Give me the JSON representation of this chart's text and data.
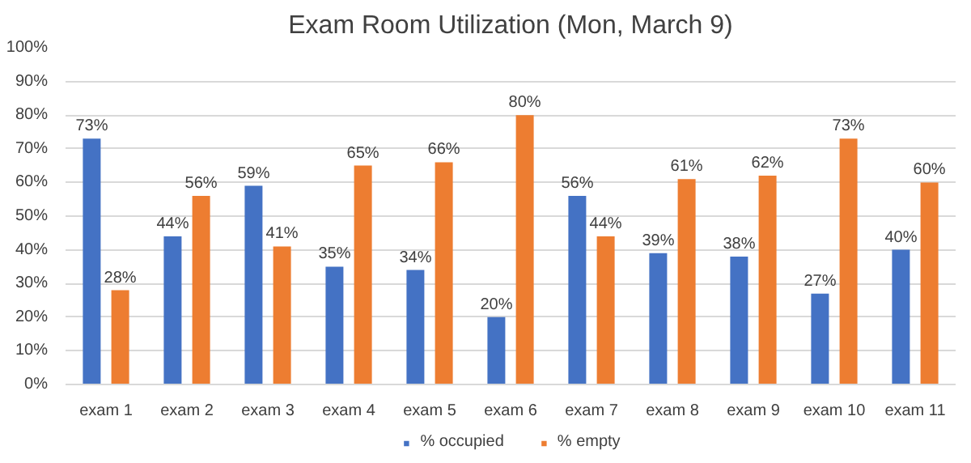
{
  "chart_data": {
    "type": "bar",
    "title": "Exam Room Utilization (Mon, March 9)",
    "categories": [
      "exam 1",
      "exam 2",
      "exam 3",
      "exam 4",
      "exam 5",
      "exam 6",
      "exam 7",
      "exam 8",
      "exam 9",
      "exam 10",
      "exam 11"
    ],
    "series": [
      {
        "name": "% occupied",
        "color": "#4472c4",
        "values": [
          73,
          44,
          59,
          35,
          34,
          20,
          56,
          39,
          38,
          27,
          40
        ],
        "value_labels": [
          "73%",
          "44%",
          "59%",
          "35%",
          "34%",
          "20%",
          "56%",
          "39%",
          "38%",
          "27%",
          "40%"
        ]
      },
      {
        "name": "% empty",
        "color": "#ed7d31",
        "values": [
          28,
          56,
          41,
          65,
          66,
          80,
          44,
          61,
          62,
          73,
          60
        ],
        "value_labels": [
          "28%",
          "56%",
          "41%",
          "65%",
          "66%",
          "80%",
          "44%",
          "61%",
          "62%",
          "73%",
          "60%"
        ]
      }
    ],
    "ylim": [
      0,
      100
    ],
    "yticks": [
      {
        "value": 0,
        "label": "0%"
      },
      {
        "value": 10,
        "label": "10%"
      },
      {
        "value": 20,
        "label": "20%"
      },
      {
        "value": 30,
        "label": "30%"
      },
      {
        "value": 40,
        "label": "40%"
      },
      {
        "value": 50,
        "label": "50%"
      },
      {
        "value": 60,
        "label": "60%"
      },
      {
        "value": 70,
        "label": "70%"
      },
      {
        "value": 80,
        "label": "80%"
      },
      {
        "value": 90,
        "label": "90%"
      },
      {
        "value": 100,
        "label": "100%"
      }
    ],
    "grid": "y",
    "legend": "bottom"
  }
}
